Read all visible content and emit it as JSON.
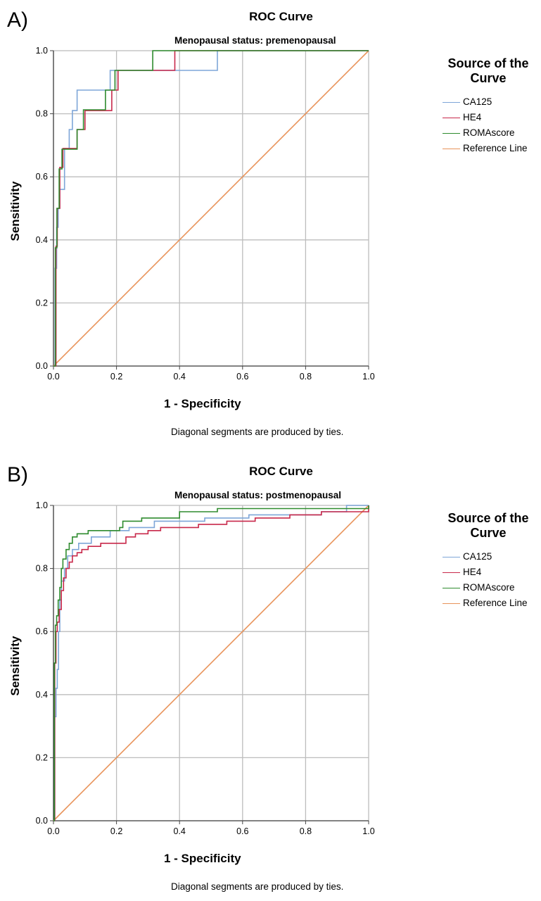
{
  "chart_data": [
    {
      "type": "line",
      "panel_label": "A)",
      "title": "ROC Curve",
      "subtitle": "Menopausal status: premenopausal",
      "xlabel": "1 - Specificity",
      "ylabel": "Sensitivity",
      "xlim": [
        0,
        1
      ],
      "ylim": [
        0,
        1
      ],
      "x_ticks": [
        "0.0",
        "0.2",
        "0.4",
        "0.6",
        "0.8",
        "1.0"
      ],
      "y_ticks": [
        "0.0",
        "0.2",
        "0.4",
        "0.6",
        "0.8",
        "1.0"
      ],
      "grid": true,
      "legend_title": "Source of the Curve",
      "legend_position": "top-right",
      "footnote": "Diagonal segments are produced by ties.",
      "series": [
        {
          "name": "CA125",
          "color": "#7ea6d8",
          "points": [
            [
              0,
              0
            ],
            [
              0.005,
              0
            ],
            [
              0.005,
              0.31
            ],
            [
              0.01,
              0.31
            ],
            [
              0.01,
              0.44
            ],
            [
              0.015,
              0.44
            ],
            [
              0.015,
              0.5
            ],
            [
              0.02,
              0.5
            ],
            [
              0.02,
              0.56
            ],
            [
              0.035,
              0.56
            ],
            [
              0.035,
              0.69
            ],
            [
              0.05,
              0.69
            ],
            [
              0.05,
              0.75
            ],
            [
              0.06,
              0.75
            ],
            [
              0.06,
              0.81
            ],
            [
              0.075,
              0.81
            ],
            [
              0.075,
              0.875
            ],
            [
              0.18,
              0.875
            ],
            [
              0.18,
              0.9375
            ],
            [
              0.52,
              0.9375
            ],
            [
              0.52,
              1.0
            ],
            [
              1.0,
              1.0
            ]
          ]
        },
        {
          "name": "HE4",
          "color": "#c8284a",
          "points": [
            [
              0,
              0
            ],
            [
              0.008,
              0
            ],
            [
              0.008,
              0.38
            ],
            [
              0.012,
              0.38
            ],
            [
              0.012,
              0.5
            ],
            [
              0.02,
              0.5
            ],
            [
              0.02,
              0.63
            ],
            [
              0.03,
              0.63
            ],
            [
              0.03,
              0.69
            ],
            [
              0.075,
              0.69
            ],
            [
              0.075,
              0.75
            ],
            [
              0.1,
              0.75
            ],
            [
              0.1,
              0.81
            ],
            [
              0.185,
              0.81
            ],
            [
              0.185,
              0.875
            ],
            [
              0.205,
              0.875
            ],
            [
              0.205,
              0.9375
            ],
            [
              0.385,
              0.9375
            ],
            [
              0.385,
              1.0
            ],
            [
              1.0,
              1.0
            ]
          ]
        },
        {
          "name": "ROMAscore",
          "color": "#2e8b2e",
          "points": [
            [
              0,
              0
            ],
            [
              0.006,
              0
            ],
            [
              0.006,
              0.375
            ],
            [
              0.011,
              0.375
            ],
            [
              0.011,
              0.5
            ],
            [
              0.018,
              0.5
            ],
            [
              0.018,
              0.625
            ],
            [
              0.027,
              0.625
            ],
            [
              0.027,
              0.6875
            ],
            [
              0.075,
              0.6875
            ],
            [
              0.075,
              0.75
            ],
            [
              0.095,
              0.75
            ],
            [
              0.095,
              0.8125
            ],
            [
              0.165,
              0.8125
            ],
            [
              0.165,
              0.875
            ],
            [
              0.195,
              0.875
            ],
            [
              0.195,
              0.9375
            ],
            [
              0.315,
              0.9375
            ],
            [
              0.315,
              1.0
            ],
            [
              1.0,
              1.0
            ]
          ]
        },
        {
          "name": "Reference Line",
          "color": "#e8935a",
          "points": [
            [
              0,
              0
            ],
            [
              1,
              1
            ]
          ]
        }
      ]
    },
    {
      "type": "line",
      "panel_label": "B)",
      "title": "ROC Curve",
      "subtitle": "Menopausal status: postmenopausal",
      "xlabel": "1 - Specificity",
      "ylabel": "Sensitivity",
      "xlim": [
        0,
        1
      ],
      "ylim": [
        0,
        1
      ],
      "x_ticks": [
        "0.0",
        "0.2",
        "0.4",
        "0.6",
        "0.8",
        "1.0"
      ],
      "y_ticks": [
        "0.0",
        "0.2",
        "0.4",
        "0.6",
        "0.8",
        "1.0"
      ],
      "grid": true,
      "legend_title": "Source of the Curve",
      "legend_position": "top-right",
      "footnote": "Diagonal segments are produced by ties.",
      "series": [
        {
          "name": "CA125",
          "color": "#7ea6d8",
          "points": [
            [
              0,
              0
            ],
            [
              0.004,
              0
            ],
            [
              0.004,
              0.33
            ],
            [
              0.008,
              0.33
            ],
            [
              0.008,
              0.42
            ],
            [
              0.012,
              0.42
            ],
            [
              0.012,
              0.48
            ],
            [
              0.016,
              0.48
            ],
            [
              0.016,
              0.6
            ],
            [
              0.02,
              0.6
            ],
            [
              0.02,
              0.7
            ],
            [
              0.025,
              0.7
            ],
            [
              0.025,
              0.76
            ],
            [
              0.035,
              0.76
            ],
            [
              0.035,
              0.8
            ],
            [
              0.045,
              0.8
            ],
            [
              0.045,
              0.84
            ],
            [
              0.06,
              0.84
            ],
            [
              0.06,
              0.86
            ],
            [
              0.08,
              0.86
            ],
            [
              0.08,
              0.88
            ],
            [
              0.12,
              0.88
            ],
            [
              0.12,
              0.9
            ],
            [
              0.18,
              0.9
            ],
            [
              0.18,
              0.92
            ],
            [
              0.24,
              0.92
            ],
            [
              0.24,
              0.93
            ],
            [
              0.32,
              0.93
            ],
            [
              0.32,
              0.95
            ],
            [
              0.48,
              0.95
            ],
            [
              0.48,
              0.96
            ],
            [
              0.62,
              0.96
            ],
            [
              0.62,
              0.97
            ],
            [
              0.85,
              0.97
            ],
            [
              0.85,
              0.98
            ],
            [
              0.93,
              0.98
            ],
            [
              0.93,
              1.0
            ],
            [
              1.0,
              1.0
            ]
          ]
        },
        {
          "name": "HE4",
          "color": "#c8284a",
          "points": [
            [
              0,
              0
            ],
            [
              0.004,
              0
            ],
            [
              0.004,
              0.5
            ],
            [
              0.008,
              0.5
            ],
            [
              0.008,
              0.6
            ],
            [
              0.012,
              0.6
            ],
            [
              0.012,
              0.63
            ],
            [
              0.018,
              0.63
            ],
            [
              0.018,
              0.67
            ],
            [
              0.025,
              0.67
            ],
            [
              0.025,
              0.73
            ],
            [
              0.032,
              0.73
            ],
            [
              0.032,
              0.77
            ],
            [
              0.04,
              0.77
            ],
            [
              0.04,
              0.8
            ],
            [
              0.05,
              0.8
            ],
            [
              0.05,
              0.82
            ],
            [
              0.06,
              0.82
            ],
            [
              0.06,
              0.84
            ],
            [
              0.075,
              0.84
            ],
            [
              0.075,
              0.85
            ],
            [
              0.09,
              0.85
            ],
            [
              0.09,
              0.86
            ],
            [
              0.11,
              0.86
            ],
            [
              0.11,
              0.87
            ],
            [
              0.15,
              0.87
            ],
            [
              0.15,
              0.88
            ],
            [
              0.23,
              0.88
            ],
            [
              0.23,
              0.9
            ],
            [
              0.26,
              0.9
            ],
            [
              0.26,
              0.91
            ],
            [
              0.3,
              0.91
            ],
            [
              0.3,
              0.92
            ],
            [
              0.34,
              0.92
            ],
            [
              0.34,
              0.93
            ],
            [
              0.46,
              0.93
            ],
            [
              0.46,
              0.94
            ],
            [
              0.55,
              0.94
            ],
            [
              0.55,
              0.95
            ],
            [
              0.64,
              0.95
            ],
            [
              0.64,
              0.96
            ],
            [
              0.75,
              0.96
            ],
            [
              0.75,
              0.97
            ],
            [
              0.85,
              0.97
            ],
            [
              0.85,
              0.98
            ],
            [
              1.0,
              0.98
            ],
            [
              1.0,
              1.0
            ]
          ]
        },
        {
          "name": "ROMAscore",
          "color": "#2e8b2e",
          "points": [
            [
              0,
              0
            ],
            [
              0.003,
              0
            ],
            [
              0.003,
              0.5
            ],
            [
              0.006,
              0.5
            ],
            [
              0.006,
              0.62
            ],
            [
              0.01,
              0.62
            ],
            [
              0.01,
              0.65
            ],
            [
              0.015,
              0.65
            ],
            [
              0.015,
              0.7
            ],
            [
              0.02,
              0.7
            ],
            [
              0.02,
              0.74
            ],
            [
              0.025,
              0.74
            ],
            [
              0.025,
              0.8
            ],
            [
              0.03,
              0.8
            ],
            [
              0.03,
              0.83
            ],
            [
              0.04,
              0.83
            ],
            [
              0.04,
              0.86
            ],
            [
              0.05,
              0.86
            ],
            [
              0.05,
              0.88
            ],
            [
              0.06,
              0.88
            ],
            [
              0.06,
              0.9
            ],
            [
              0.075,
              0.9
            ],
            [
              0.075,
              0.91
            ],
            [
              0.11,
              0.91
            ],
            [
              0.11,
              0.92
            ],
            [
              0.21,
              0.92
            ],
            [
              0.21,
              0.93
            ],
            [
              0.22,
              0.93
            ],
            [
              0.22,
              0.95
            ],
            [
              0.28,
              0.95
            ],
            [
              0.28,
              0.96
            ],
            [
              0.4,
              0.96
            ],
            [
              0.4,
              0.98
            ],
            [
              0.52,
              0.98
            ],
            [
              0.52,
              0.99
            ],
            [
              1.0,
              0.99
            ],
            [
              1.0,
              1.0
            ]
          ]
        },
        {
          "name": "Reference Line",
          "color": "#e8935a",
          "points": [
            [
              0,
              0
            ],
            [
              1,
              1
            ]
          ]
        }
      ]
    }
  ]
}
